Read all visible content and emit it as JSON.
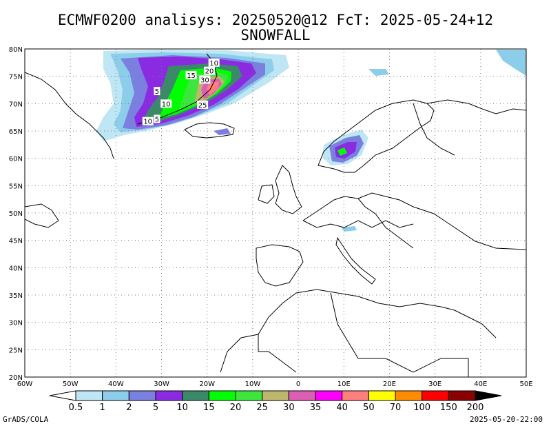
{
  "title_line1": "ECMWF0200 analisys: 20250520@12 FcT: 2025-05-24+12",
  "title_line2": "SNOWFALL",
  "footer_left": "GrADS/COLA",
  "footer_right": "2025-05-20-22:00",
  "map": {
    "lon_range": [
      -60,
      50
    ],
    "lat_range": [
      20,
      80
    ],
    "lat_labels": [
      "80N",
      "75N",
      "70N",
      "65N",
      "60N",
      "55N",
      "50N",
      "45N",
      "40N",
      "35N",
      "30N",
      "25N",
      "20N"
    ],
    "lon_labels": [
      "60W",
      "50W",
      "40W",
      "30W",
      "20W",
      "10W",
      "0",
      "10E",
      "20E",
      "30E",
      "40E",
      "50E"
    ],
    "contour_labels": [
      {
        "text": "10",
        "lon": -18.5,
        "lat": 77.5
      },
      {
        "text": "20",
        "lon": -19.5,
        "lat": 76.0
      },
      {
        "text": "15",
        "lon": -23.5,
        "lat": 75.2
      },
      {
        "text": "30",
        "lon": -20.5,
        "lat": 74.4
      },
      {
        "text": "5",
        "lon": -31.0,
        "lat": 72.3
      },
      {
        "text": "10",
        "lon": -29.0,
        "lat": 70.0
      },
      {
        "text": "25",
        "lon": -21.0,
        "lat": 69.8
      },
      {
        "text": "10",
        "lon": -33.0,
        "lat": 66.8
      },
      {
        "text": "5",
        "lon": -31.0,
        "lat": 67.2
      }
    ]
  },
  "colorbar": {
    "labels": [
      "0.5",
      "1",
      "2",
      "5",
      "10",
      "15",
      "20",
      "25",
      "30",
      "35",
      "40",
      "50",
      "70",
      "100",
      "150",
      "200"
    ],
    "colors": [
      "#bfe6f5",
      "#8ccde9",
      "#7b7fe0",
      "#8a2be2",
      "#3a8a6a",
      "#00ff00",
      "#3ce63c",
      "#bdb76b",
      "#dd5fb4",
      "#ff00ff",
      "#ff7f7f",
      "#ffff00",
      "#ff8c00",
      "#ff0000",
      "#8b0000"
    ],
    "under_color": "#ffffff",
    "over_color": "#000000"
  }
}
